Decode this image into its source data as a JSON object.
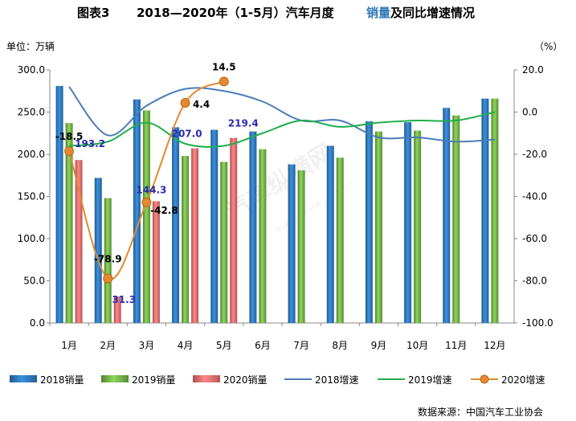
{
  "chart_data": {
    "type": "bar",
    "title_prefix": "图表3",
    "title_years": "2018—2020年（1-5月）汽车月度",
    "title_highlight": "销量",
    "title_suffix": "及同比增速情况",
    "ylabel": "单位：万辆",
    "y2label": "（%）",
    "source": "数据来源：中国汽车工业协会",
    "categories": [
      "1月",
      "2月",
      "3月",
      "4月",
      "5月",
      "6月",
      "7月",
      "8月",
      "9月",
      "10月",
      "11月",
      "12月"
    ],
    "ylim": [
      0,
      300
    ],
    "y_ticks": [
      "0.0",
      "50.0",
      "100.0",
      "150.0",
      "200.0",
      "250.0",
      "300.0"
    ],
    "y2lim": [
      -100,
      20
    ],
    "y2_ticks": [
      "-100.0",
      "-80.0",
      "-60.0",
      "-40.0",
      "-20.0",
      "0.0",
      "20.0"
    ],
    "bar_series": [
      {
        "name": "2018销量",
        "color": "#2E75B6",
        "values": [
          281,
          172,
          265,
          232,
          229,
          227,
          188,
          210,
          239,
          238,
          255,
          266
        ]
      },
      {
        "name": "2019销量",
        "color": "#70AD47",
        "values": [
          237,
          148,
          252,
          198,
          191,
          206,
          181,
          196,
          227,
          228,
          246,
          266
        ]
      },
      {
        "name": "2020销量",
        "color": "#E26D6D",
        "values": [
          193.2,
          31.3,
          144.3,
          207.0,
          219.4
        ]
      }
    ],
    "line_series": [
      {
        "name": "2018增速",
        "color": "#4A7CB8",
        "values": [
          12,
          -11,
          3,
          11,
          10,
          5,
          -4,
          -4,
          -12,
          -12,
          -14,
          -13
        ]
      },
      {
        "name": "2019增速",
        "color": "#1FAE4B",
        "values": [
          -16,
          -14,
          -5,
          -15,
          -16,
          -10,
          -4,
          -7,
          -5,
          -4,
          -4,
          0
        ]
      },
      {
        "name": "2020增速",
        "color": "#E28A2E",
        "values": [
          -18.5,
          -78.9,
          -42.8,
          4.4,
          14.5
        ]
      }
    ],
    "data_labels": {
      "sales_2020": [
        "193.2",
        "31.3",
        "144.3",
        "207.0",
        "219.4"
      ],
      "growth_2020": [
        "-18.5",
        "-78.9",
        "-42.8",
        "4.4",
        "14.5"
      ]
    },
    "legend_position": "bottom",
    "watermark": "汽车纵横网 autoreview.com.cn"
  }
}
